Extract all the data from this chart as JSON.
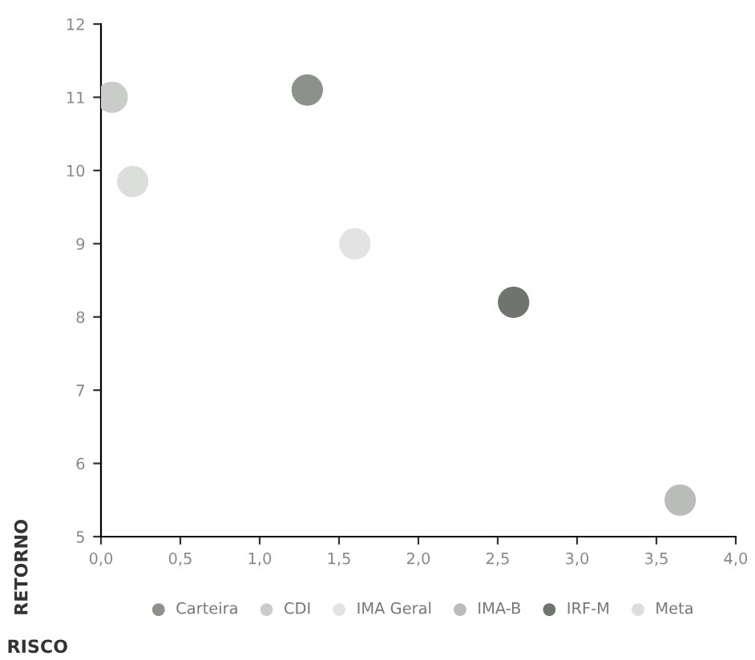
{
  "chart_data": {
    "type": "scatter",
    "xlabel": "RISCO",
    "ylabel": "RETORNO",
    "xlim": [
      0,
      4
    ],
    "ylim": [
      5,
      12
    ],
    "xticks": [
      {
        "value": 0,
        "label": "0,0"
      },
      {
        "value": 0.5,
        "label": "0,5"
      },
      {
        "value": 1,
        "label": "1,0"
      },
      {
        "value": 1.5,
        "label": "1,5"
      },
      {
        "value": 2,
        "label": "2,0"
      },
      {
        "value": 2.5,
        "label": "2,5"
      },
      {
        "value": 3,
        "label": "3,0"
      },
      {
        "value": 3.5,
        "label": "3,5"
      },
      {
        "value": 4,
        "label": "4,0"
      }
    ],
    "yticks": [
      5,
      6,
      7,
      8,
      9,
      10,
      11,
      12
    ],
    "grid": false,
    "legend": "bottom",
    "marker": "circle",
    "series": [
      {
        "name": "Carteira",
        "color": "#8c918c",
        "x": [
          1.3
        ],
        "values": [
          11.1
        ]
      },
      {
        "name": "CDI",
        "color": "#c9ccc9",
        "x": [
          0.07
        ],
        "values": [
          11.0
        ]
      },
      {
        "name": "IMA Geral",
        "color": "#e2e3e2",
        "x": [
          1.6
        ],
        "values": [
          9.0
        ]
      },
      {
        "name": "IMA-B",
        "color": "#b9bcb9",
        "x": [
          3.65
        ],
        "values": [
          5.5
        ]
      },
      {
        "name": "IRF-M",
        "color": "#6f746f",
        "x": [
          2.6
        ],
        "values": [
          8.2
        ]
      },
      {
        "name": "Meta",
        "color": "#dcdedc",
        "x": [
          0.2
        ],
        "values": [
          9.85
        ]
      }
    ]
  }
}
